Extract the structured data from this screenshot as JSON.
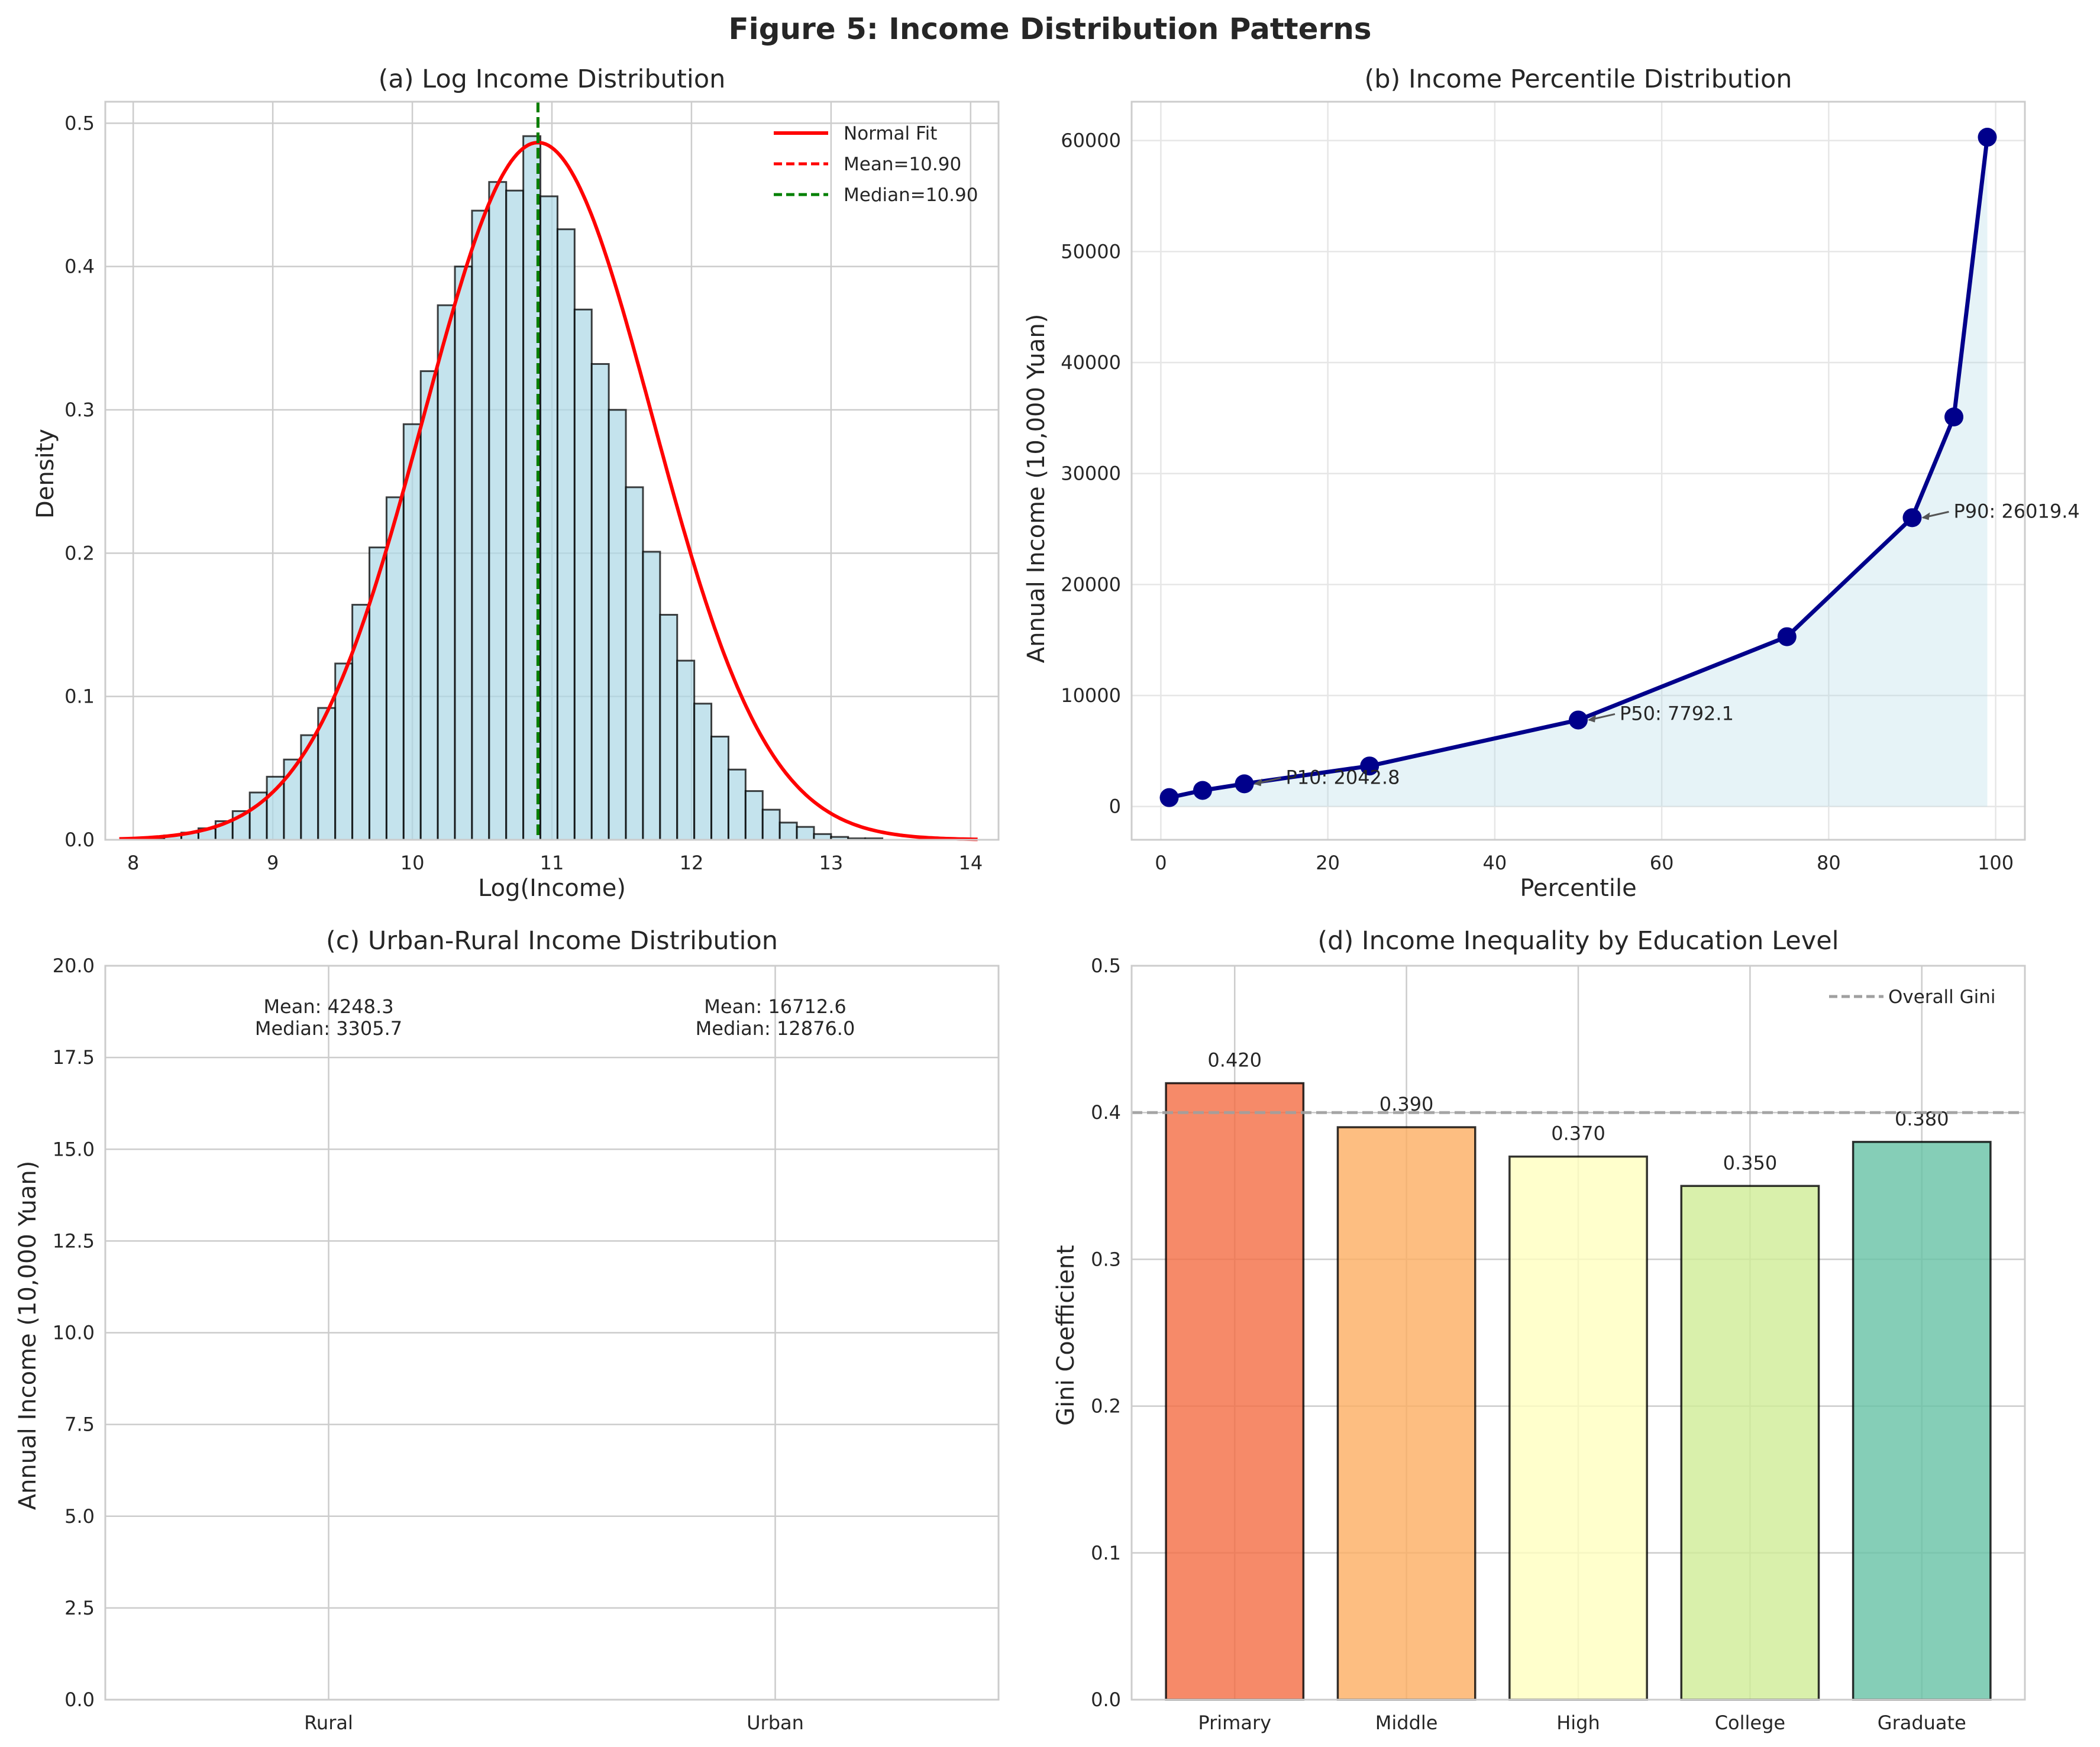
{
  "figure": {
    "title": "Figure 5: Income Distribution Patterns"
  },
  "colors": {
    "hist_fill": "#add8e6",
    "normal_fit": "#ff0000",
    "median_line": "#008000",
    "percentile_line": "#00008b",
    "percentile_fill": "#add8e6",
    "overall_gini": "#a0a0a0",
    "education": [
      "#f46d43",
      "#fdae61",
      "#ffffbf",
      "#d0ec96",
      "#66c2a5"
    ]
  },
  "chart_data": [
    {
      "id": "a",
      "type": "bar",
      "title": "(a) Log Income Distribution",
      "xlabel": "Log(Income)",
      "ylabel": "Density",
      "xlim": [
        7.8,
        14.2
      ],
      "ylim": [
        0,
        0.515
      ],
      "xticks": [
        8,
        9,
        10,
        11,
        12,
        13,
        14
      ],
      "yticks": [
        0.0,
        0.1,
        0.2,
        0.3,
        0.4,
        0.5
      ],
      "histogram": {
        "bin_start": 8.1,
        "bin_width": 0.1225,
        "values": [
          0.001,
          0.003,
          0.005,
          0.008,
          0.013,
          0.02,
          0.033,
          0.044,
          0.056,
          0.073,
          0.092,
          0.123,
          0.164,
          0.204,
          0.239,
          0.29,
          0.327,
          0.373,
          0.4,
          0.439,
          0.459,
          0.453,
          0.491,
          0.449,
          0.426,
          0.37,
          0.332,
          0.3,
          0.246,
          0.201,
          0.157,
          0.125,
          0.095,
          0.072,
          0.049,
          0.034,
          0.021,
          0.012,
          0.009,
          0.004,
          0.002,
          0.001,
          0.001
        ]
      },
      "normal_fit": {
        "name": "Normal Fit",
        "mean": 10.9,
        "std": 0.82,
        "x_range": [
          7.9,
          14.05
        ]
      },
      "mean_line": {
        "name": "Mean=10.90",
        "x": 10.9
      },
      "median_line": {
        "name": "Median=10.90",
        "x": 10.9
      },
      "grid": true,
      "legend": "top-right"
    },
    {
      "id": "b",
      "type": "line",
      "title": "(b) Income Percentile Distribution",
      "xlabel": "Percentile",
      "ylabel": "Annual Income (10,000 Yuan)",
      "xlim": [
        -3.5,
        103.5
      ],
      "ylim": [
        -3000,
        63500
      ],
      "xticks": [
        0,
        20,
        40,
        60,
        80,
        100
      ],
      "yticks": [
        0,
        10000,
        20000,
        30000,
        40000,
        50000,
        60000
      ],
      "x": [
        1,
        5,
        10,
        25,
        50,
        75,
        90,
        95,
        99
      ],
      "y": [
        800,
        1450,
        2042.8,
        3650,
        7792.1,
        15300,
        26019.4,
        35100,
        60300
      ],
      "annotations": [
        {
          "text": "P10: 2042.8",
          "x": 10,
          "y": 2042.8
        },
        {
          "text": "P50: 7792.1",
          "x": 50,
          "y": 7792.1
        },
        {
          "text": "P90: 26019.4",
          "x": 90,
          "y": 26019.4
        }
      ],
      "grid": true
    },
    {
      "id": "c",
      "type": "bar",
      "title": "(c) Urban-Rural Income Distribution",
      "xlabel": "",
      "ylabel": "Annual Income (10,000 Yuan)",
      "ylim": [
        0,
        20
      ],
      "yticks": [
        0.0,
        2.5,
        5.0,
        7.5,
        10.0,
        12.5,
        15.0,
        17.5,
        20.0
      ],
      "categories": [
        "Rural",
        "Urban"
      ],
      "annotations": [
        {
          "category": "Rural",
          "lines": [
            "Mean: 4248.3",
            "Median: 3305.7"
          ]
        },
        {
          "category": "Urban",
          "lines": [
            "Mean: 16712.6",
            "Median: 12876.0"
          ]
        }
      ],
      "grid": true
    },
    {
      "id": "d",
      "type": "bar",
      "title": "(d) Income Inequality by Education Level",
      "xlabel": "",
      "ylabel": "Gini Coefficient",
      "ylim": [
        0,
        0.5
      ],
      "yticks": [
        0.0,
        0.1,
        0.2,
        0.3,
        0.4,
        0.5
      ],
      "categories": [
        "Primary",
        "Middle",
        "High",
        "College",
        "Graduate"
      ],
      "values": [
        0.42,
        0.39,
        0.37,
        0.35,
        0.38
      ],
      "value_labels": [
        "0.420",
        "0.390",
        "0.370",
        "0.350",
        "0.380"
      ],
      "reference_line": {
        "name": "Overall Gini",
        "y": 0.4
      },
      "grid": true,
      "legend": "top-right"
    }
  ]
}
